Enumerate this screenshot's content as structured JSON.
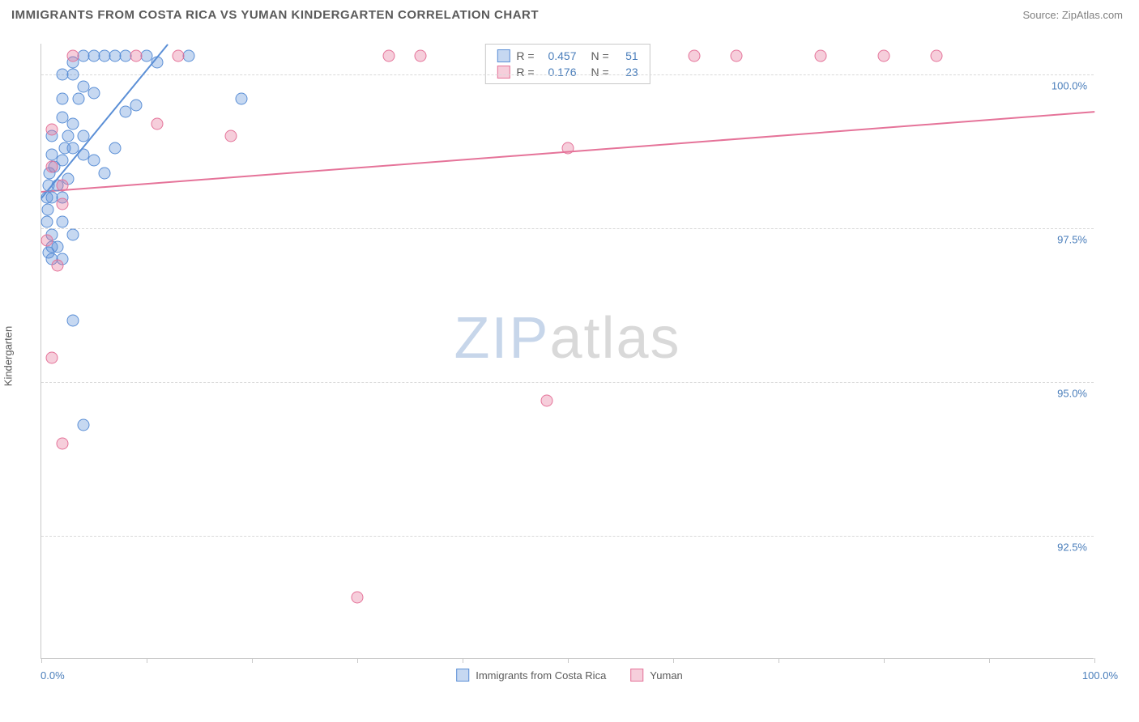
{
  "title": "IMMIGRANTS FROM COSTA RICA VS YUMAN KINDERGARTEN CORRELATION CHART",
  "source": "Source: ZipAtlas.com",
  "y_axis_label": "Kindergarten",
  "watermark_bold": "ZIP",
  "watermark_light": "atlas",
  "chart": {
    "type": "scatter",
    "xlim": [
      0,
      100
    ],
    "ylim": [
      90.5,
      100.5
    ],
    "x_ticks": [
      0,
      10,
      20,
      30,
      40,
      50,
      60,
      70,
      80,
      90,
      100
    ],
    "y_ticks": [
      92.5,
      95.0,
      97.5,
      100.0
    ],
    "y_tick_labels": [
      "92.5%",
      "95.0%",
      "97.5%",
      "100.0%"
    ],
    "x_label_0": "0.0%",
    "x_label_100": "100.0%",
    "grid_color": "#d9d9d9",
    "axis_color": "#c9c9c9",
    "background_color": "#ffffff",
    "marker_radius": 7.5,
    "marker_fill_opacity": 0.35,
    "series": [
      {
        "name": "Immigrants from Costa Rica",
        "color": "#5b8fd6",
        "fill": "rgba(91,143,214,0.35)",
        "r": 0.457,
        "n": 51,
        "trend": {
          "x1": 0,
          "y1": 98.0,
          "x2": 12,
          "y2": 100.5
        },
        "points": [
          [
            1,
            98.0
          ],
          [
            1.5,
            98.2
          ],
          [
            2,
            98.0
          ],
          [
            0.8,
            98.4
          ],
          [
            2,
            98.6
          ],
          [
            1,
            98.7
          ],
          [
            3,
            98.8
          ],
          [
            2,
            97.6
          ],
          [
            1,
            97.4
          ],
          [
            0.5,
            97.6
          ],
          [
            2,
            97.0
          ],
          [
            1.5,
            97.2
          ],
          [
            3,
            97.4
          ],
          [
            0.5,
            98.0
          ],
          [
            0.7,
            98.2
          ],
          [
            2.5,
            99.0
          ],
          [
            3,
            99.2
          ],
          [
            1,
            99.0
          ],
          [
            2,
            99.3
          ],
          [
            3,
            100.2
          ],
          [
            4,
            100.3
          ],
          [
            5,
            100.3
          ],
          [
            6,
            100.3
          ],
          [
            7,
            100.3
          ],
          [
            8,
            100.3
          ],
          [
            4,
            99.8
          ],
          [
            5,
            99.7
          ],
          [
            3.5,
            99.6
          ],
          [
            2,
            99.6
          ],
          [
            4,
            98.7
          ],
          [
            5,
            98.6
          ],
          [
            6,
            98.4
          ],
          [
            7,
            98.8
          ],
          [
            8,
            99.4
          ],
          [
            9,
            99.5
          ],
          [
            10,
            100.3
          ],
          [
            11,
            100.2
          ],
          [
            3,
            100.0
          ],
          [
            2,
            100.0
          ],
          [
            3,
            96.0
          ],
          [
            4,
            94.3
          ],
          [
            1,
            97.0
          ],
          [
            1,
            97.2
          ],
          [
            0.7,
            97.1
          ],
          [
            4,
            99.0
          ],
          [
            19,
            99.6
          ],
          [
            14,
            100.3
          ],
          [
            2.5,
            98.3
          ],
          [
            1.2,
            98.5
          ],
          [
            0.6,
            97.8
          ],
          [
            2.2,
            98.8
          ]
        ]
      },
      {
        "name": "Yuman",
        "color": "#e57399",
        "fill": "rgba(229,115,153,0.35)",
        "r": 0.176,
        "n": 23,
        "trend": {
          "x1": 0,
          "y1": 98.1,
          "x2": 100,
          "y2": 99.4
        },
        "points": [
          [
            1,
            99.1
          ],
          [
            2,
            94.0
          ],
          [
            1,
            95.4
          ],
          [
            0.5,
            97.3
          ],
          [
            1.5,
            96.9
          ],
          [
            2,
            98.2
          ],
          [
            11,
            99.2
          ],
          [
            13,
            100.3
          ],
          [
            18,
            99.0
          ],
          [
            9,
            100.3
          ],
          [
            33,
            100.3
          ],
          [
            36,
            100.3
          ],
          [
            50,
            98.8
          ],
          [
            48,
            94.7
          ],
          [
            30,
            91.5
          ],
          [
            62,
            100.3
          ],
          [
            66,
            100.3
          ],
          [
            74,
            100.3
          ],
          [
            80,
            100.3
          ],
          [
            85,
            100.3
          ],
          [
            3,
            100.3
          ],
          [
            1,
            98.5
          ],
          [
            2,
            97.9
          ]
        ]
      }
    ]
  },
  "bottom_legend": [
    {
      "label": "Immigrants from Costa Rica",
      "color": "#5b8fd6",
      "fill": "rgba(91,143,214,0.35)"
    },
    {
      "label": "Yuman",
      "color": "#e57399",
      "fill": "rgba(229,115,153,0.35)"
    }
  ]
}
